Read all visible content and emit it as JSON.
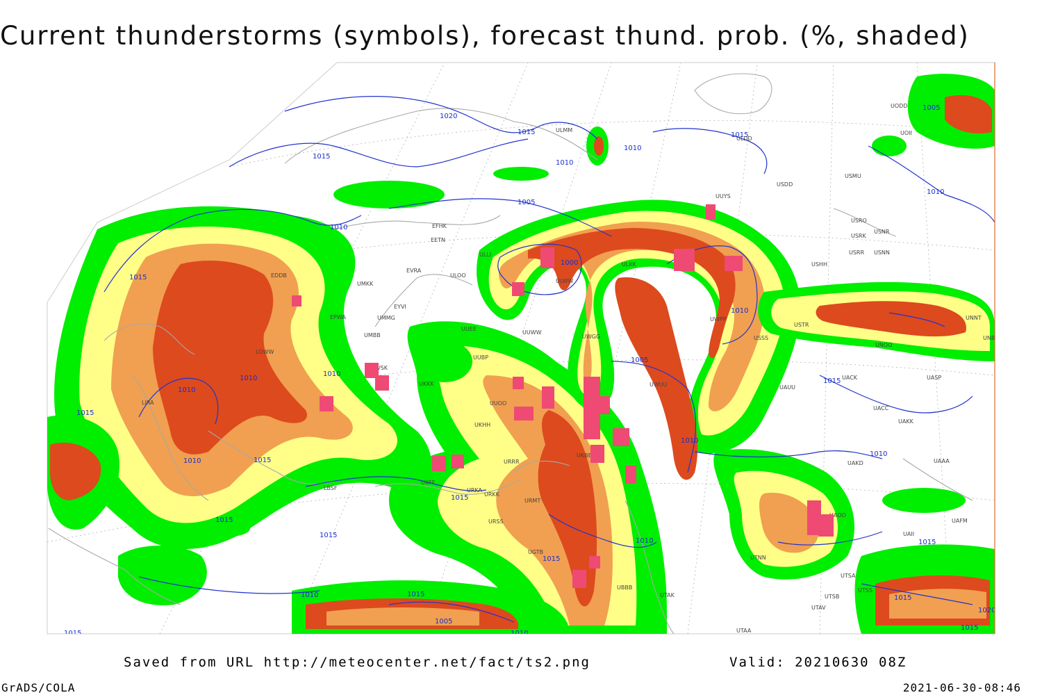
{
  "title": "Current thunderstorms (symbols), forecast thund. prob. (%, shaded)",
  "footer": {
    "saved_from": "Saved from URL http://meteocenter.net/fact/ts2.png",
    "valid": "Valid: 20210630 08Z",
    "software": "GrADS/COLA",
    "timestamp": "2021-06-30-08:46"
  },
  "colors": {
    "prob_low": "#00ee00",
    "prob_mid": "#ffff88",
    "prob_high": "#f0a050",
    "prob_max": "#dd4a1e",
    "thunderstorm_symbol": "#ee4a74",
    "isobar": "#2233cc",
    "coastline": "#a8a8a8"
  },
  "isobar_labels": [
    {
      "text": "1020"
    },
    {
      "text": "1015"
    },
    {
      "text": "1015"
    },
    {
      "text": "1010"
    },
    {
      "text": "1010"
    },
    {
      "text": "1015"
    },
    {
      "text": "1005"
    },
    {
      "text": "1010"
    },
    {
      "text": "1000"
    },
    {
      "text": "1015"
    },
    {
      "text": "1010"
    },
    {
      "text": "1010"
    },
    {
      "text": "1010"
    },
    {
      "text": "1015"
    },
    {
      "text": "1010"
    },
    {
      "text": "1015"
    },
    {
      "text": "1015"
    },
    {
      "text": "1015"
    },
    {
      "text": "1010"
    },
    {
      "text": "1005"
    },
    {
      "text": "1010"
    },
    {
      "text": "1015"
    },
    {
      "text": "1010"
    },
    {
      "text": "1010"
    },
    {
      "text": "1010"
    },
    {
      "text": "1015"
    },
    {
      "text": "1010"
    },
    {
      "text": "1010"
    },
    {
      "text": "1015"
    },
    {
      "text": "1005"
    },
    {
      "text": "1015"
    },
    {
      "text": "1010"
    },
    {
      "text": "1005"
    },
    {
      "text": "1015"
    },
    {
      "text": "1015"
    },
    {
      "text": "1020"
    },
    {
      "text": "1015"
    },
    {
      "text": "1015"
    }
  ],
  "station_labels": [
    {
      "text": "ULMM"
    },
    {
      "text": "ULDD"
    },
    {
      "text": "USDD"
    },
    {
      "text": "USMU"
    },
    {
      "text": "UUYS"
    },
    {
      "text": "USRO"
    },
    {
      "text": "USRK"
    },
    {
      "text": "USNR"
    },
    {
      "text": "USRR"
    },
    {
      "text": "USNN"
    },
    {
      "text": "USHH"
    },
    {
      "text": "UODD"
    },
    {
      "text": "UOII"
    },
    {
      "text": "EFHK"
    },
    {
      "text": "EETN"
    },
    {
      "text": "EVRA"
    },
    {
      "text": "ULOO"
    },
    {
      "text": "ULLI"
    },
    {
      "text": "UMKK"
    },
    {
      "text": "EYVI"
    },
    {
      "text": "UMMG"
    },
    {
      "text": "EPWA"
    },
    {
      "text": "UMBB"
    },
    {
      "text": "EDDB"
    },
    {
      "text": "LOWW"
    },
    {
      "text": "LIRA"
    },
    {
      "text": "ULWW"
    },
    {
      "text": "ULKK"
    },
    {
      "text": "UUWW"
    },
    {
      "text": "UUEE"
    },
    {
      "text": "UWGG"
    },
    {
      "text": "UUBP"
    },
    {
      "text": "UKKK"
    },
    {
      "text": "UUOO"
    },
    {
      "text": "UKHH"
    },
    {
      "text": "UKFF"
    },
    {
      "text": "URRR"
    },
    {
      "text": "URKA"
    },
    {
      "text": "URKK"
    },
    {
      "text": "URMT"
    },
    {
      "text": "URSS"
    },
    {
      "text": "UGTB"
    },
    {
      "text": "UBBB"
    },
    {
      "text": "UTAK"
    },
    {
      "text": "UTAA"
    },
    {
      "text": "UTSS"
    },
    {
      "text": "UTSB"
    },
    {
      "text": "UTAV"
    },
    {
      "text": "UTSA"
    },
    {
      "text": "UTNN"
    },
    {
      "text": "UAOO"
    },
    {
      "text": "UAAA"
    },
    {
      "text": "UAKD"
    },
    {
      "text": "UAII"
    },
    {
      "text": "UAFM"
    },
    {
      "text": "UACC"
    },
    {
      "text": "UAKK"
    },
    {
      "text": "UAUU"
    },
    {
      "text": "UASP"
    },
    {
      "text": "UACK"
    },
    {
      "text": "UNBB"
    },
    {
      "text": "UNOO"
    },
    {
      "text": "UNNT"
    },
    {
      "text": "USTR"
    },
    {
      "text": "USSS"
    },
    {
      "text": "UWPP"
    },
    {
      "text": "UWUU"
    },
    {
      "text": "LBSF"
    },
    {
      "text": "UKBB"
    },
    {
      "text": "LWSK"
    }
  ]
}
